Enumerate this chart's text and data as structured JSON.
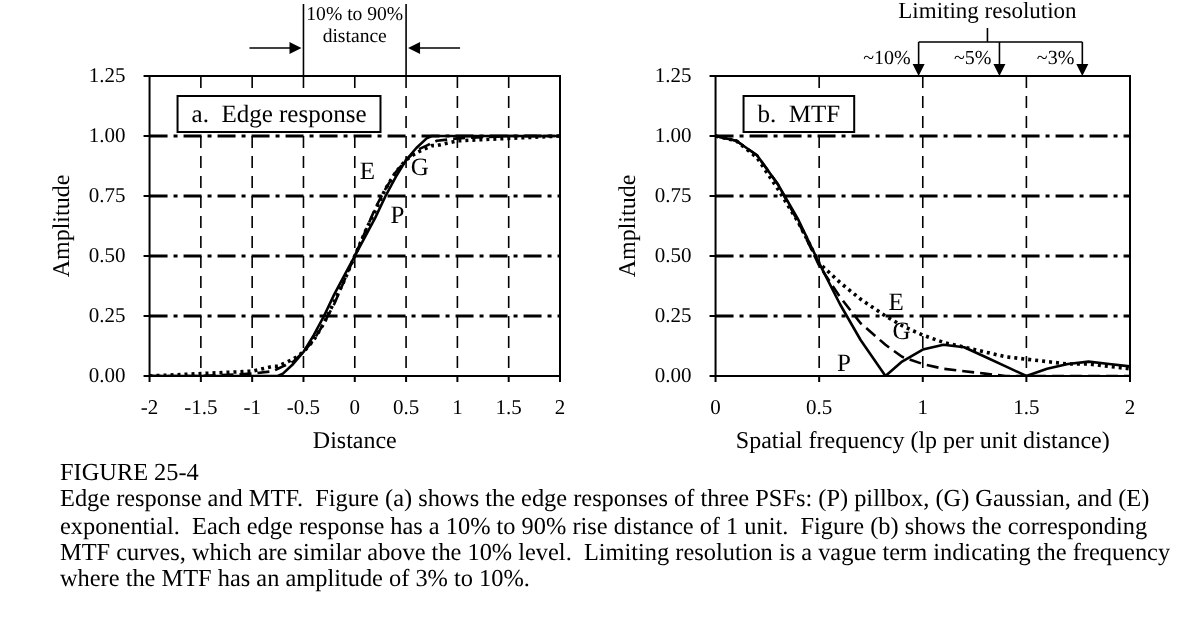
{
  "chart_data": [
    {
      "type": "line",
      "title": "a.  Edge response",
      "xlabel": "Distance",
      "ylabel": "Amplitude",
      "grid": true,
      "legend": false,
      "marker": "none",
      "x": [
        -2,
        -1.5,
        -1,
        -0.8,
        -0.75,
        -0.7,
        -0.6,
        -0.5,
        -0.4,
        -0.3,
        -0.2,
        -0.1,
        0,
        0.1,
        0.2,
        0.3,
        0.4,
        0.5,
        0.6,
        0.7,
        0.75,
        0.8,
        1,
        1.5,
        2
      ],
      "series": [
        {
          "name": "P",
          "color": "#000000",
          "line_style": "solid",
          "values": [
            0,
            0,
            0,
            0,
            0,
            0.01,
            0.05,
            0.1,
            0.17,
            0.25,
            0.34,
            0.42,
            0.5,
            0.58,
            0.66,
            0.75,
            0.83,
            0.9,
            0.95,
            0.99,
            1,
            1,
            1,
            1,
            1
          ]
        },
        {
          "name": "G",
          "color": "#000000",
          "line_style": "dashed",
          "values": [
            0,
            0,
            0.01,
            0.02,
            0.03,
            0.04,
            0.06,
            0.1,
            0.15,
            0.22,
            0.3,
            0.4,
            0.5,
            0.6,
            0.7,
            0.78,
            0.85,
            0.9,
            0.94,
            0.96,
            0.97,
            0.98,
            0.99,
            1,
            1
          ]
        },
        {
          "name": "E",
          "color": "#000000",
          "line_style": "dotted",
          "values": [
            0,
            0.01,
            0.02,
            0.04,
            0.04,
            0.05,
            0.07,
            0.1,
            0.15,
            0.22,
            0.31,
            0.4,
            0.5,
            0.6,
            0.69,
            0.78,
            0.85,
            0.9,
            0.93,
            0.95,
            0.96,
            0.96,
            0.98,
            0.99,
            1
          ]
        }
      ],
      "xlim": [
        -2,
        2
      ],
      "xticks": [
        -2,
        -1.5,
        -1,
        -0.5,
        0,
        0.5,
        1,
        1.5,
        2
      ],
      "ylim": [
        0,
        1.25
      ],
      "yticks": [
        {
          "value": 0,
          "label": "0.00"
        },
        {
          "value": 0.25,
          "label": "0.25"
        },
        {
          "value": 0.5,
          "label": "0.50"
        },
        {
          "value": 0.75,
          "label": "0.75"
        },
        {
          "value": 1,
          "label": "1.00"
        },
        {
          "value": 1.25,
          "label": "1.25"
        }
      ],
      "annotations": [
        "10% to 90% distance"
      ]
    },
    {
      "type": "line",
      "title": "b.  MTF",
      "xlabel": "Spatial frequency (lp per unit distance)",
      "ylabel": "Amplitude",
      "grid": true,
      "legend": false,
      "marker": "none",
      "x": [
        0,
        0.1,
        0.2,
        0.3,
        0.4,
        0.5,
        0.6,
        0.7,
        0.82,
        0.9,
        1,
        1.1,
        1.2,
        1.3,
        1.4,
        1.5,
        1.6,
        1.7,
        1.8,
        1.9,
        2
      ],
      "series": [
        {
          "name": "P",
          "color": "#000000",
          "line_style": "solid",
          "values": [
            1,
            0.98,
            0.92,
            0.8,
            0.65,
            0.47,
            0.3,
            0.15,
            0,
            0.06,
            0.11,
            0.13,
            0.12,
            0.08,
            0.04,
            0,
            0.03,
            0.05,
            0.06,
            0.05,
            0.04
          ]
        },
        {
          "name": "G",
          "color": "#000000",
          "line_style": "dashed",
          "values": [
            1,
            0.98,
            0.92,
            0.8,
            0.64,
            0.46,
            0.33,
            0.22,
            0.13,
            0.08,
            0.05,
            0.03,
            0.02,
            0.01,
            0,
            0,
            0,
            0,
            0,
            0,
            0
          ]
        },
        {
          "name": "E",
          "color": "#000000",
          "line_style": "dotted",
          "values": [
            1,
            0.98,
            0.91,
            0.78,
            0.64,
            0.47,
            0.39,
            0.32,
            0.25,
            0.21,
            0.17,
            0.14,
            0.12,
            0.1,
            0.08,
            0.07,
            0.06,
            0.05,
            0.05,
            0.04,
            0.03
          ]
        }
      ],
      "xlim": [
        0,
        2
      ],
      "xticks": [
        0,
        0.5,
        1,
        1.5,
        2
      ],
      "ylim": [
        0,
        1.25
      ],
      "yticks": [
        {
          "value": 0,
          "label": "0.00"
        },
        {
          "value": 0.25,
          "label": "0.25"
        },
        {
          "value": 0.5,
          "label": "0.50"
        },
        {
          "value": 0.75,
          "label": "0.75"
        },
        {
          "value": 1,
          "label": "1.00"
        },
        {
          "value": 1.25,
          "label": "1.25"
        }
      ],
      "annotations": [
        "Limiting resolution",
        "~10%",
        "~5%",
        "~3%",
        "FIGURE 25-4",
        "Edge response and MTF.  Figure (a) shows the edge responses of three PSFs: (P) pillbox, (G) Gaussian, and (E) exponential.  Each edge response has a 10% to 90% rise distance of 1 unit.  Figure (b) shows the corresponding MTF curves, which are similar above the 10% level.  Limiting resolution is a vague term indicating the frequency where the MTF has an amplitude of 3% to 10%."
      ]
    }
  ]
}
